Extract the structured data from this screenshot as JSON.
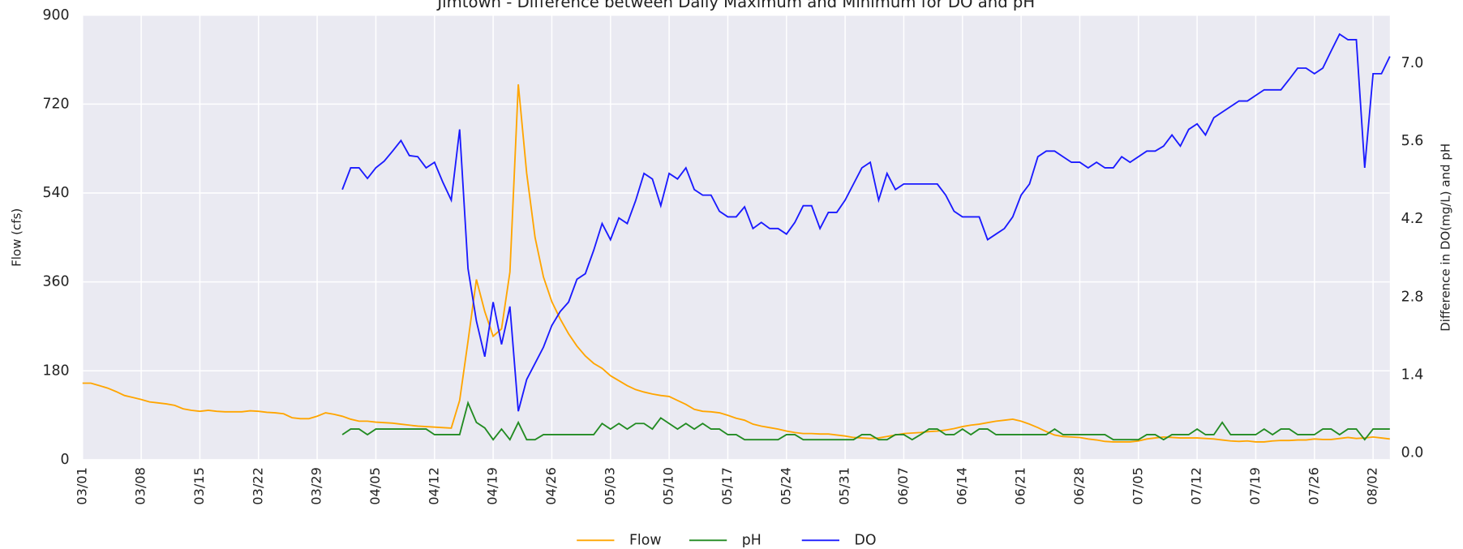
{
  "chart_data": {
    "type": "line",
    "title": "Jimtown - Difference between Daily Maximum and Minimum for DO and pH",
    "y_label": "Flow (cfs)",
    "y2_label": "Difference in DO(mg/L) and pH",
    "x": [
      "03/01",
      "03/02",
      "03/03",
      "03/04",
      "03/05",
      "03/06",
      "03/07",
      "03/08",
      "03/09",
      "03/10",
      "03/11",
      "03/12",
      "03/13",
      "03/14",
      "03/15",
      "03/16",
      "03/17",
      "03/18",
      "03/19",
      "03/20",
      "03/21",
      "03/22",
      "03/23",
      "03/24",
      "03/25",
      "03/26",
      "03/27",
      "03/28",
      "03/29",
      "03/30",
      "03/31",
      "04/01",
      "04/02",
      "04/03",
      "04/04",
      "04/05",
      "04/06",
      "04/07",
      "04/08",
      "04/09",
      "04/10",
      "04/11",
      "04/12",
      "04/13",
      "04/14",
      "04/15",
      "04/16",
      "04/17",
      "04/18",
      "04/19",
      "04/20",
      "04/21",
      "04/22",
      "04/23",
      "04/24",
      "04/25",
      "04/26",
      "04/27",
      "04/28",
      "04/29",
      "04/30",
      "05/01",
      "05/02",
      "05/03",
      "05/04",
      "05/05",
      "05/06",
      "05/07",
      "05/08",
      "05/09",
      "05/10",
      "05/11",
      "05/12",
      "05/13",
      "05/14",
      "05/15",
      "05/16",
      "05/17",
      "05/18",
      "05/19",
      "05/20",
      "05/21",
      "05/22",
      "05/23",
      "05/24",
      "05/25",
      "05/26",
      "05/27",
      "05/28",
      "05/29",
      "05/30",
      "05/31",
      "06/01",
      "06/02",
      "06/03",
      "06/04",
      "06/05",
      "06/06",
      "06/07",
      "06/08",
      "06/09",
      "06/10",
      "06/11",
      "06/12",
      "06/13",
      "06/14",
      "06/15",
      "06/16",
      "06/17",
      "06/18",
      "06/19",
      "06/20",
      "06/21",
      "06/22",
      "06/23",
      "06/24",
      "06/25",
      "06/26",
      "06/27",
      "06/28",
      "06/29",
      "06/30",
      "07/01",
      "07/02",
      "07/03",
      "07/04",
      "07/05",
      "07/06",
      "07/07",
      "07/08",
      "07/09",
      "07/10",
      "07/11",
      "07/12",
      "07/13",
      "07/14",
      "07/15",
      "07/16",
      "07/17",
      "07/18",
      "07/19",
      "07/20",
      "07/21",
      "07/22",
      "07/23",
      "07/24",
      "07/25",
      "07/26",
      "07/27",
      "07/28",
      "07/29",
      "07/30",
      "07/31",
      "08/01",
      "08/02",
      "08/03",
      "08/04"
    ],
    "xticks": [
      "03/01",
      "03/08",
      "03/15",
      "03/22",
      "03/29",
      "04/05",
      "04/12",
      "04/19",
      "04/26",
      "05/03",
      "05/10",
      "05/17",
      "05/24",
      "05/31",
      "06/07",
      "06/14",
      "06/21",
      "06/28",
      "07/05",
      "07/12",
      "07/19",
      "07/26",
      "08/02"
    ],
    "ylim": [
      0,
      900
    ],
    "yticks": [
      0,
      180,
      360,
      540,
      720,
      900
    ],
    "y2lim": [
      -0.12,
      7.86
    ],
    "y2ticks": [
      {
        "value": 0,
        "label": "0.0"
      },
      1.4,
      2.8,
      4.2,
      5.6,
      {
        "value": 7,
        "label": "7.0"
      }
    ],
    "grid": true,
    "legend": "lower center",
    "series": [
      {
        "name": "Flow",
        "color": "#ffa500",
        "axis": "y",
        "values": [
          155,
          155,
          150,
          145,
          138,
          130,
          126,
          122,
          117,
          115,
          113,
          110,
          103,
          100,
          98,
          100,
          98,
          97,
          97,
          97,
          99,
          98,
          96,
          95,
          93,
          85,
          83,
          83,
          88,
          95,
          92,
          88,
          82,
          78,
          78,
          76,
          75,
          74,
          72,
          70,
          68,
          67,
          66,
          65,
          64,
          120,
          240,
          365,
          300,
          250,
          265,
          380,
          760,
          580,
          450,
          370,
          320,
          285,
          255,
          230,
          210,
          195,
          185,
          170,
          160,
          150,
          142,
          137,
          133,
          130,
          128,
          120,
          112,
          102,
          98,
          97,
          95,
          90,
          84,
          80,
          72,
          68,
          65,
          62,
          58,
          55,
          53,
          53,
          52,
          52,
          50,
          48,
          45,
          44,
          43,
          44,
          47,
          50,
          53,
          54,
          55,
          57,
          58,
          60,
          63,
          67,
          70,
          72,
          75,
          78,
          80,
          82,
          78,
          72,
          65,
          57,
          50,
          47,
          46,
          45,
          42,
          40,
          37,
          36,
          36,
          36,
          38,
          42,
          44,
          46,
          45,
          44,
          44,
          44,
          43,
          42,
          40,
          38,
          37,
          38,
          36,
          36,
          38,
          39,
          39,
          40,
          40,
          42,
          41,
          41,
          43,
          45,
          43,
          44,
          46,
          44,
          42
        ]
      },
      {
        "name": "pH",
        "color": "#228b22",
        "axis": "y2",
        "values": [
          null,
          null,
          null,
          null,
          null,
          null,
          null,
          null,
          null,
          null,
          null,
          null,
          null,
          null,
          null,
          null,
          null,
          null,
          null,
          null,
          null,
          null,
          null,
          null,
          null,
          null,
          null,
          null,
          null,
          null,
          null,
          0.33,
          0.43,
          0.43,
          0.33,
          0.43,
          0.43,
          0.43,
          0.43,
          0.43,
          0.43,
          0.43,
          0.33,
          0.33,
          0.33,
          0.33,
          0.9,
          0.55,
          0.45,
          0.24,
          0.43,
          0.24,
          0.55,
          0.24,
          0.24,
          0.33,
          0.33,
          0.33,
          0.33,
          0.33,
          0.33,
          0.33,
          0.53,
          0.43,
          0.53,
          0.43,
          0.53,
          0.53,
          0.43,
          0.63,
          0.53,
          0.43,
          0.53,
          0.43,
          0.53,
          0.43,
          0.43,
          0.33,
          0.33,
          0.24,
          0.24,
          0.24,
          0.24,
          0.24,
          0.33,
          0.33,
          0.24,
          0.24,
          0.24,
          0.24,
          0.24,
          0.24,
          0.24,
          0.33,
          0.33,
          0.24,
          0.24,
          0.33,
          0.33,
          0.24,
          0.33,
          0.43,
          0.43,
          0.33,
          0.33,
          0.43,
          0.33,
          0.43,
          0.43,
          0.33,
          0.33,
          0.33,
          0.33,
          0.33,
          0.33,
          0.33,
          0.43,
          0.33,
          0.33,
          0.33,
          0.33,
          0.33,
          0.33,
          0.24,
          0.24,
          0.24,
          0.24,
          0.33,
          0.33,
          0.24,
          0.33,
          0.33,
          0.33,
          0.43,
          0.33,
          0.33,
          0.55,
          0.33,
          0.33,
          0.33,
          0.33,
          0.43,
          0.33,
          0.43,
          0.43,
          0.33,
          0.33,
          0.33,
          0.43,
          0.43,
          0.33,
          0.43,
          0.43,
          0.24,
          0.43,
          0.43,
          0.43
        ]
      },
      {
        "name": "DO",
        "color": "#1a1aff",
        "axis": "y2",
        "values": [
          null,
          null,
          null,
          null,
          null,
          null,
          null,
          null,
          null,
          null,
          null,
          null,
          null,
          null,
          null,
          null,
          null,
          null,
          null,
          null,
          null,
          null,
          null,
          null,
          null,
          null,
          null,
          null,
          null,
          null,
          null,
          4.73,
          5.12,
          5.12,
          4.93,
          5.12,
          5.24,
          5.42,
          5.61,
          5.34,
          5.32,
          5.12,
          5.22,
          4.86,
          4.54,
          5.81,
          3.31,
          2.37,
          1.73,
          2.71,
          1.95,
          2.63,
          0.75,
          1.32,
          1.61,
          1.9,
          2.29,
          2.54,
          2.71,
          3.12,
          3.22,
          3.64,
          4.12,
          3.83,
          4.22,
          4.12,
          4.53,
          5.02,
          4.92,
          4.44,
          5.02,
          4.92,
          5.12,
          4.73,
          4.63,
          4.63,
          4.34,
          4.24,
          4.24,
          4.42,
          4.03,
          4.14,
          4.03,
          4.03,
          3.93,
          4.14,
          4.44,
          4.44,
          4.03,
          4.32,
          4.32,
          4.54,
          4.83,
          5.12,
          5.22,
          4.54,
          5.02,
          4.73,
          4.83,
          4.83,
          4.83,
          4.83,
          4.83,
          4.63,
          4.34,
          4.24,
          4.24,
          4.24,
          3.83,
          3.93,
          4.03,
          4.24,
          4.63,
          4.83,
          5.32,
          5.42,
          5.42,
          5.32,
          5.22,
          5.22,
          5.12,
          5.22,
          5.12,
          5.12,
          5.32,
          5.22,
          5.32,
          5.42,
          5.42,
          5.51,
          5.71,
          5.51,
          5.81,
          5.91,
          5.71,
          6.02,
          6.12,
          6.22,
          6.32,
          6.32,
          6.42,
          6.52,
          6.52,
          6.52,
          6.71,
          6.91,
          6.91,
          6.81,
          6.91,
          7.22,
          7.52,
          7.42,
          7.42,
          5.12,
          6.81,
          6.81,
          7.12
        ]
      }
    ]
  }
}
